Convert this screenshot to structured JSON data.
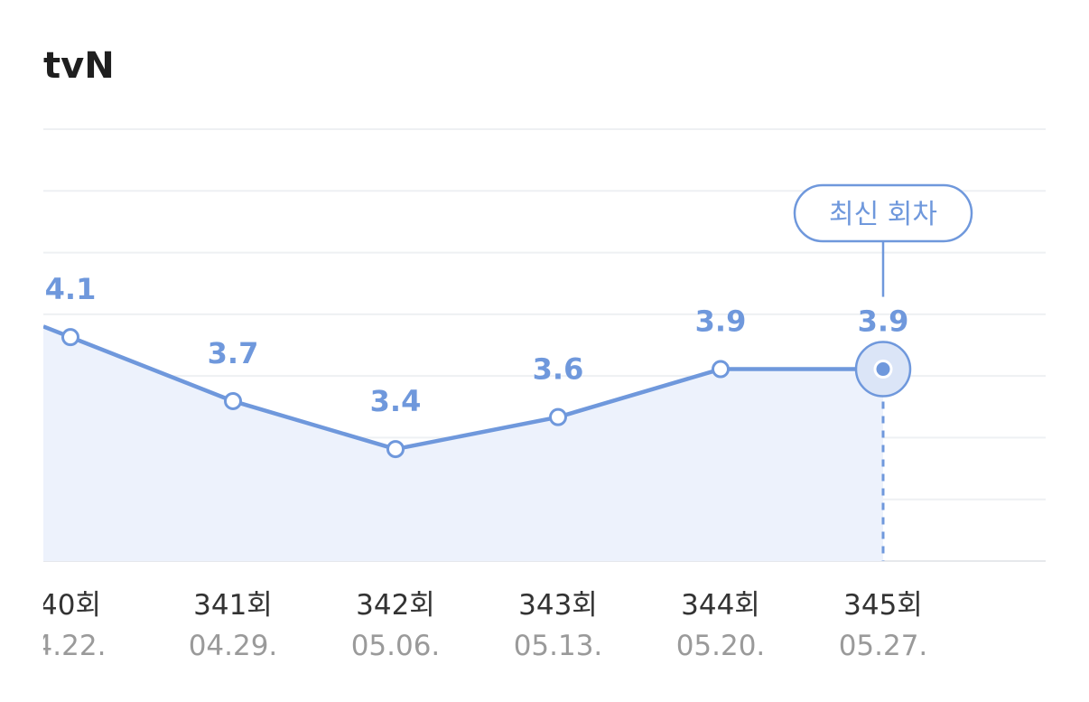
{
  "header": {
    "channel": "tvN"
  },
  "chart_data": {
    "type": "area",
    "title": "",
    "xlabel": "",
    "ylabel": "",
    "ylim": [
      2.7,
      5.4
    ],
    "grid": true,
    "accent_color": "#6f98dc",
    "fill_color": "#edf2fc",
    "categories": [
      {
        "episode": "40회",
        "date": "4.22."
      },
      {
        "episode": "341회",
        "date": "04.29."
      },
      {
        "episode": "342회",
        "date": "05.06."
      },
      {
        "episode": "343회",
        "date": "05.13."
      },
      {
        "episode": "344회",
        "date": "05.20."
      },
      {
        "episode": "345회",
        "date": "05.27."
      }
    ],
    "series": [
      {
        "values": [
          4.1,
          3.7,
          3.4,
          3.6,
          3.9,
          3.9
        ]
      }
    ],
    "value_labels": [
      "4.1",
      "3.7",
      "3.4",
      "3.6",
      "3.9",
      "3.9"
    ],
    "latest_badge": "최신 회차",
    "latest_index": 5
  }
}
